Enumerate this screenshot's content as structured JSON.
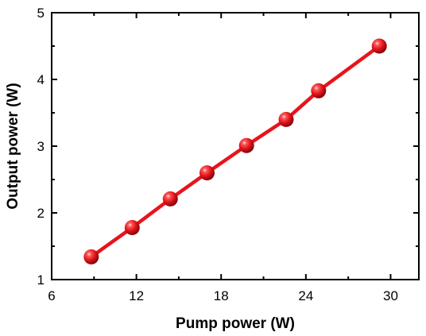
{
  "chart_data": {
    "type": "line",
    "xlabel": "Pump power (W)",
    "ylabel": "Output power (W)",
    "xlim": [
      6,
      32
    ],
    "ylim": [
      1,
      5
    ],
    "xticks": [
      6,
      12,
      18,
      24,
      30
    ],
    "yticks": [
      1,
      2,
      3,
      4,
      5
    ],
    "grid": false,
    "series": [
      {
        "x": [
          8.8,
          11.7,
          14.4,
          17.0,
          19.8,
          22.6,
          24.9,
          29.2
        ],
        "y": [
          1.34,
          1.78,
          2.21,
          2.6,
          3.01,
          3.4,
          3.83,
          4.5
        ],
        "color": "#e8141c",
        "marker": "sphere",
        "line_style": "solid"
      }
    ]
  }
}
